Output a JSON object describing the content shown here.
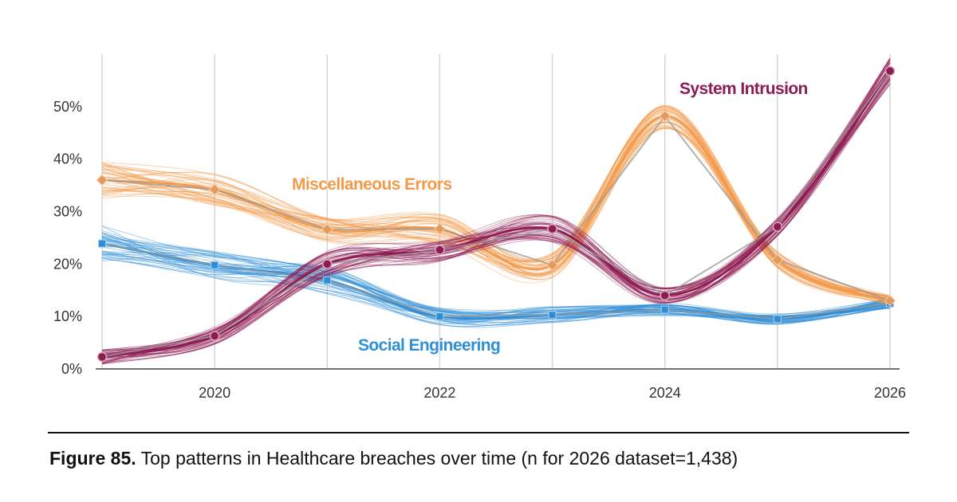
{
  "chart_data": {
    "type": "line",
    "x": [
      2019,
      2020,
      2021,
      2022,
      2023,
      2024,
      2025,
      2026
    ],
    "xticks": [
      "2020",
      "2022",
      "2024",
      "2026"
    ],
    "xtick_values": [
      2020,
      2022,
      2024,
      2026
    ],
    "yticks": [
      "0%",
      "10%",
      "20%",
      "30%",
      "40%",
      "50%"
    ],
    "ytick_values": [
      0,
      10,
      20,
      30,
      40,
      50
    ],
    "xlim": [
      2019,
      2026
    ],
    "ylim": [
      0,
      60
    ],
    "grid": "vertical",
    "legend": "direct labels",
    "series": [
      {
        "name": "System Intrusion",
        "color": "#8e1b52",
        "values": [
          2.3,
          6.3,
          20.0,
          22.7,
          26.7,
          14.0,
          27.1,
          56.8
        ]
      },
      {
        "name": "Miscellaneous Errors",
        "color": "#f39a4a",
        "values": [
          36.0,
          34.2,
          26.6,
          26.7,
          19.8,
          48.2,
          20.8,
          13.0
        ]
      },
      {
        "name": "Social Engineering",
        "color": "#2e8fd8",
        "values": [
          23.9,
          19.8,
          16.9,
          10.0,
          10.3,
          11.3,
          9.5,
          12.5
        ]
      }
    ]
  },
  "caption": {
    "figure": "Figure 85.",
    "text": "Top patterns in Healthcare breaches over time (n for 2026 dataset=1,438)"
  }
}
